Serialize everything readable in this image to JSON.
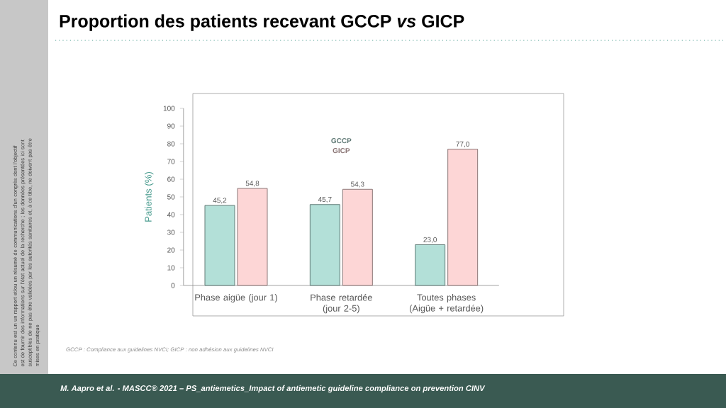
{
  "chart_data": {
    "type": "bar",
    "title": "Proportion des patients recevant GCCP *vs* GICP",
    "ylabel": "Patients (%)",
    "categories": [
      "Phase aigüe (jour 1)",
      "Phase retardée (jour 2-5)",
      "Toutes phases (Aigüe + retardée)"
    ],
    "series": [
      {
        "name": "GCCP",
        "color": "#b3e0d8",
        "values": [
          45.2,
          45.7,
          23.0
        ],
        "value_labels": [
          "45,2",
          "45,7",
          "23,0"
        ]
      },
      {
        "name": "GICP",
        "color": "#fdd6d6",
        "values": [
          54.8,
          54.3,
          77.0
        ],
        "value_labels": [
          "54,8",
          "54,3",
          "77,0"
        ]
      }
    ],
    "ylim": [
      0,
      100
    ],
    "yticks": [
      0,
      10,
      20,
      30,
      40,
      50,
      60,
      70,
      80,
      90,
      100
    ],
    "legend": "top",
    "grid": false,
    "annotations": [
      "GCCP : Compliance aux guidelines NVCI; GICP : non adhésion aux guidelines NVCI",
      "M. Aapro et al. - MASCC® 2021 – PS_antiemetics_Impact of  antiemetic guideline compliance on prevention CINV",
      "Ce contenu est un un rapport et/ou un résumé de communications d'un congrès dont l'objectif est de fournir des informations sur l'état actuel de la recherche ; les données présentées ici sont susceptibles de ne pas être validées par les autorités sanitaires et, à ce titre, ne doivent pas être mises en pratique"
    ]
  }
}
